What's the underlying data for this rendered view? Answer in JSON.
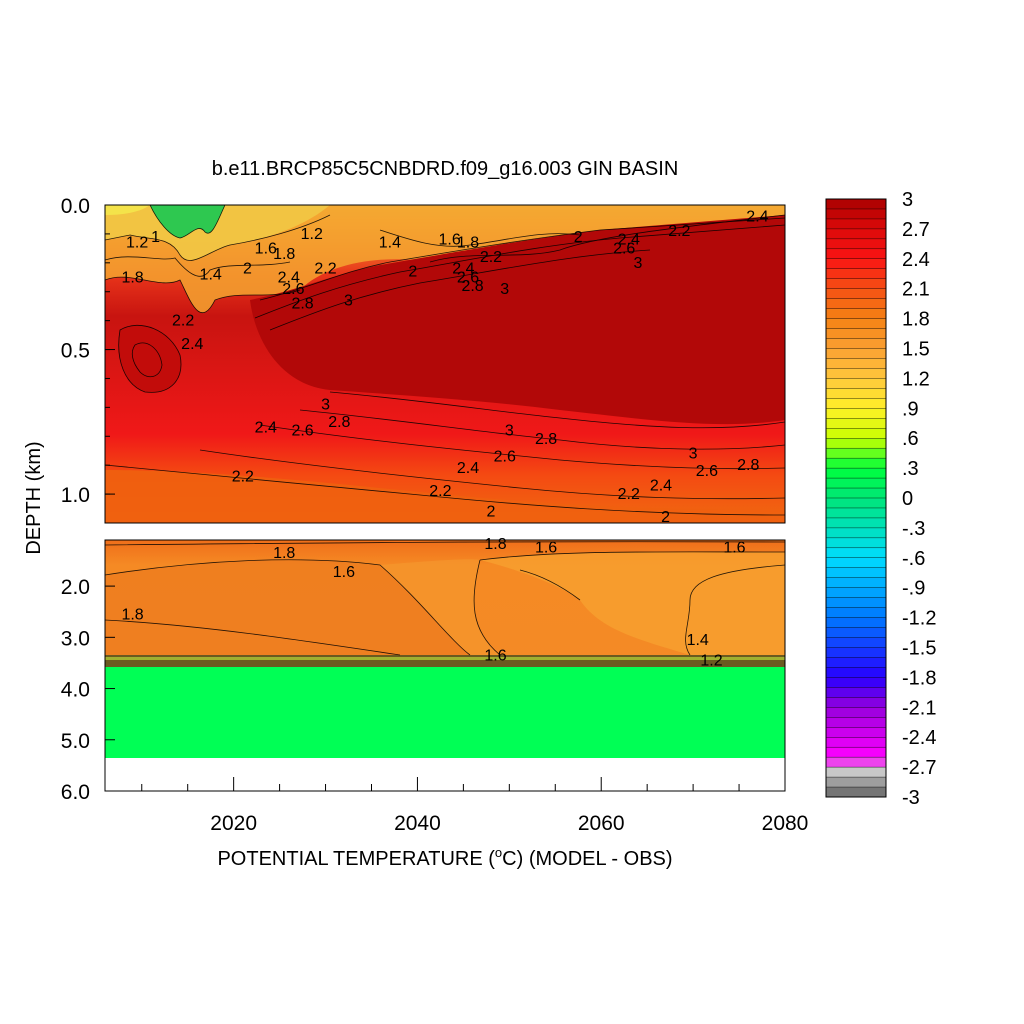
{
  "chart_data": {
    "type": "heatmap",
    "title": "b.e11.BRCP85C5CNBDRD.f09_g16.003 GIN BASIN",
    "xlabel": "POTENTIAL TEMPERATURE (°C) (MODEL - OBS)",
    "ylabel": "DEPTH (km)",
    "xlim": [
      2006,
      2080
    ],
    "x_ticks": [
      "2020",
      "2040",
      "2060",
      "2080"
    ],
    "x_tick_values": [
      2020,
      2040,
      2060,
      2080
    ],
    "panels": [
      {
        "name": "upper",
        "ylim": [
          0.0,
          1.1
        ],
        "y_ticks": [
          "0.0",
          "0.5",
          "1.0"
        ],
        "y_tick_values": [
          0.0,
          0.5,
          1.0
        ]
      },
      {
        "name": "lower",
        "ylim": [
          1.1,
          6.0
        ],
        "y_ticks": [
          "2.0",
          "3.0",
          "4.0",
          "5.0",
          "6.0"
        ],
        "y_tick_values": [
          2.0,
          3.0,
          4.0,
          5.0,
          6.0
        ]
      }
    ],
    "colorbar": {
      "labels": [
        "3",
        "2.7",
        "2.4",
        "2.1",
        "1.8",
        "1.5",
        "1.2",
        ".9",
        ".6",
        ".3",
        "0",
        "-.3",
        "-.6",
        "-.9",
        "-1.2",
        "-1.5",
        "-1.8",
        "-2.1",
        "-2.4",
        "-2.7",
        "-3"
      ],
      "label_values": [
        3,
        2.7,
        2.4,
        2.1,
        1.8,
        1.5,
        1.2,
        0.9,
        0.6,
        0.3,
        0,
        -0.3,
        -0.6,
        -0.9,
        -1.2,
        -1.5,
        -1.8,
        -2.1,
        -2.4,
        -2.7,
        -3
      ],
      "min": -3,
      "max": 3,
      "step": 0.1
    },
    "contour_labels": [
      {
        "panel": 0,
        "text": "1.2",
        "x": 2009.5,
        "y": 0.13
      },
      {
        "panel": 0,
        "text": "1",
        "x": 2011.5,
        "y": 0.11
      },
      {
        "panel": 0,
        "text": "1.8",
        "x": 2009.0,
        "y": 0.25
      },
      {
        "panel": 0,
        "text": "1.4",
        "x": 2017.5,
        "y": 0.24
      },
      {
        "panel": 0,
        "text": "1.6",
        "x": 2023.5,
        "y": 0.15
      },
      {
        "panel": 0,
        "text": "1.8",
        "x": 2025.5,
        "y": 0.17
      },
      {
        "panel": 0,
        "text": "1.2",
        "x": 2028.5,
        "y": 0.1
      },
      {
        "panel": 0,
        "text": "2",
        "x": 2021.5,
        "y": 0.22
      },
      {
        "panel": 0,
        "text": "2.2",
        "x": 2030.0,
        "y": 0.22
      },
      {
        "panel": 0,
        "text": "2.4",
        "x": 2026.0,
        "y": 0.25
      },
      {
        "panel": 0,
        "text": "2.6",
        "x": 2026.5,
        "y": 0.29
      },
      {
        "panel": 0,
        "text": "2.8",
        "x": 2027.5,
        "y": 0.34
      },
      {
        "panel": 0,
        "text": "3",
        "x": 2032.5,
        "y": 0.33
      },
      {
        "panel": 0,
        "text": "1.4",
        "x": 2037.0,
        "y": 0.13
      },
      {
        "panel": 0,
        "text": "2",
        "x": 2039.5,
        "y": 0.23
      },
      {
        "panel": 0,
        "text": "1.6",
        "x": 2043.5,
        "y": 0.12
      },
      {
        "panel": 0,
        "text": "1.8",
        "x": 2045.5,
        "y": 0.13
      },
      {
        "panel": 0,
        "text": "2.4",
        "x": 2045.0,
        "y": 0.22
      },
      {
        "panel": 0,
        "text": "2.6",
        "x": 2045.5,
        "y": 0.25
      },
      {
        "panel": 0,
        "text": "2.8",
        "x": 2046.0,
        "y": 0.28
      },
      {
        "panel": 0,
        "text": "2.2",
        "x": 2048.0,
        "y": 0.18
      },
      {
        "panel": 0,
        "text": "3",
        "x": 2049.5,
        "y": 0.29
      },
      {
        "panel": 0,
        "text": "2",
        "x": 2057.5,
        "y": 0.11
      },
      {
        "panel": 0,
        "text": "2.4",
        "x": 2063.0,
        "y": 0.12
      },
      {
        "panel": 0,
        "text": "2.6",
        "x": 2062.5,
        "y": 0.15
      },
      {
        "panel": 0,
        "text": "3",
        "x": 2064.0,
        "y": 0.2
      },
      {
        "panel": 0,
        "text": "2.2",
        "x": 2068.5,
        "y": 0.09
      },
      {
        "panel": 0,
        "text": "2.4",
        "x": 2077.0,
        "y": 0.04
      },
      {
        "panel": 0,
        "text": "2.2",
        "x": 2014.5,
        "y": 0.4
      },
      {
        "panel": 0,
        "text": "2.4",
        "x": 2015.5,
        "y": 0.48
      },
      {
        "panel": 0,
        "text": "3",
        "x": 2030.0,
        "y": 0.69
      },
      {
        "panel": 0,
        "text": "2.8",
        "x": 2031.5,
        "y": 0.75
      },
      {
        "panel": 0,
        "text": "2.6",
        "x": 2027.5,
        "y": 0.78
      },
      {
        "panel": 0,
        "text": "2.4",
        "x": 2023.5,
        "y": 0.77
      },
      {
        "panel": 0,
        "text": "2.2",
        "x": 2021.0,
        "y": 0.94
      },
      {
        "panel": 0,
        "text": "3",
        "x": 2050.0,
        "y": 0.78
      },
      {
        "panel": 0,
        "text": "2.8",
        "x": 2054.0,
        "y": 0.81
      },
      {
        "panel": 0,
        "text": "2.6",
        "x": 2049.5,
        "y": 0.87
      },
      {
        "panel": 0,
        "text": "2.4",
        "x": 2045.5,
        "y": 0.91
      },
      {
        "panel": 0,
        "text": "2.2",
        "x": 2042.5,
        "y": 0.99
      },
      {
        "panel": 0,
        "text": "2",
        "x": 2048.0,
        "y": 1.06
      },
      {
        "panel": 0,
        "text": "3",
        "x": 2070.0,
        "y": 0.86
      },
      {
        "panel": 0,
        "text": "2.8",
        "x": 2076.0,
        "y": 0.9
      },
      {
        "panel": 0,
        "text": "2.6",
        "x": 2071.5,
        "y": 0.92
      },
      {
        "panel": 0,
        "text": "2.4",
        "x": 2066.5,
        "y": 0.97
      },
      {
        "panel": 0,
        "text": "2.2",
        "x": 2063.0,
        "y": 1.0
      },
      {
        "panel": 0,
        "text": "2",
        "x": 2067.0,
        "y": 1.08
      },
      {
        "panel": 1,
        "text": "1.8",
        "x": 2025.5,
        "y": 1.35
      },
      {
        "panel": 1,
        "text": "1.6",
        "x": 2032.0,
        "y": 1.72
      },
      {
        "panel": 1,
        "text": "1.8",
        "x": 2048.5,
        "y": 1.18
      },
      {
        "panel": 1,
        "text": "1.6",
        "x": 2054.0,
        "y": 1.25
      },
      {
        "panel": 1,
        "text": "1.6",
        "x": 2074.5,
        "y": 1.25
      },
      {
        "panel": 1,
        "text": "1.8",
        "x": 2009.0,
        "y": 2.55
      },
      {
        "panel": 1,
        "text": "1.4",
        "x": 2070.5,
        "y": 3.05
      },
      {
        "panel": 1,
        "text": "1.2",
        "x": 2072.0,
        "y": 3.45
      },
      {
        "panel": 1,
        "text": "1.6",
        "x": 2048.5,
        "y": 3.35
      }
    ]
  }
}
